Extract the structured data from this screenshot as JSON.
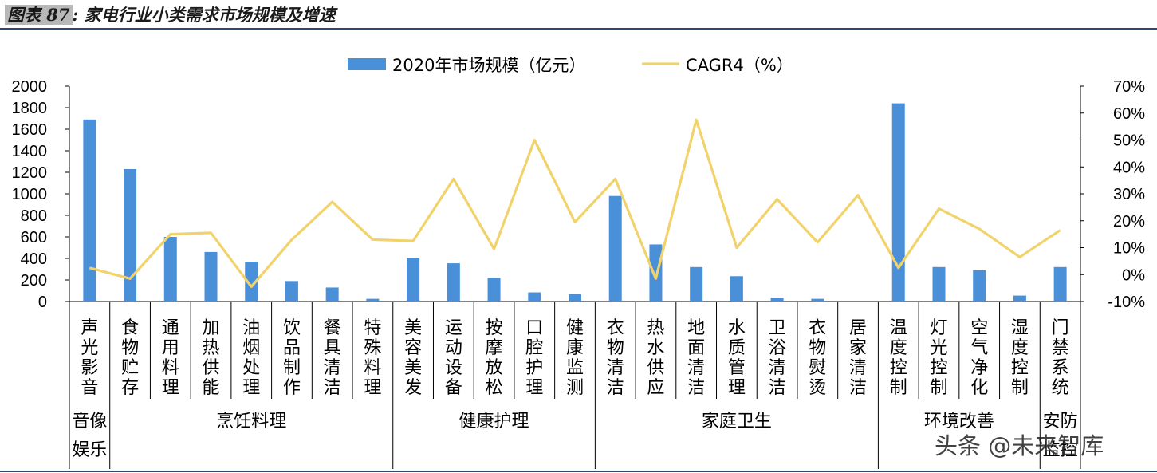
{
  "header": {
    "fig_label": "图表 87",
    "fig_sep": ":",
    "title": "家电行业小类需求市场规模及增速"
  },
  "watermark": "头条 @未来智库",
  "colors": {
    "bar": "#4a90d9",
    "line": "#f2d36b",
    "rule": "#2b4a6f"
  },
  "chart_data": {
    "type": "bar",
    "legend": [
      "2020年市场规模（亿元）",
      "CAGR4（%）"
    ],
    "legend_position": "top-center",
    "categories": [
      "声光影音",
      "食物贮存",
      "通用料理",
      "加热供能",
      "油烟处理",
      "饮品制作",
      "餐具清洁",
      "特殊料理",
      "美容美发",
      "运动设备",
      "按摩放松",
      "口腔护理",
      "健康监测",
      "衣物清洁",
      "热水供应",
      "地面清洁",
      "水质管理",
      "卫浴清洁",
      "衣物熨烫",
      "居家清洁",
      "温度控制",
      "灯光控制",
      "空气净化",
      "湿度控制",
      "门禁系统"
    ],
    "groups": [
      {
        "name": "音像娱乐",
        "start": 0,
        "end": 0
      },
      {
        "name": "烹饪料理",
        "start": 1,
        "end": 7
      },
      {
        "name": "健康护理",
        "start": 8,
        "end": 12
      },
      {
        "name": "家庭卫生",
        "start": 13,
        "end": 19
      },
      {
        "name": "环境改善",
        "start": 20,
        "end": 23
      },
      {
        "name": "安防监控",
        "start": 24,
        "end": 24
      }
    ],
    "series": [
      {
        "name": "2020年市场规模（亿元）",
        "type": "bar",
        "axis": "left",
        "values": [
          1690,
          1230,
          600,
          460,
          370,
          190,
          130,
          25,
          400,
          355,
          220,
          85,
          70,
          980,
          530,
          320,
          235,
          35,
          25,
          0,
          1840,
          320,
          290,
          55,
          320
        ]
      },
      {
        "name": "CAGR4（%）",
        "type": "line",
        "axis": "right",
        "values": [
          2.5,
          -1.5,
          15,
          15.5,
          -4.5,
          13,
          27,
          13,
          12.5,
          35.5,
          9.5,
          50,
          19.5,
          35.5,
          -1.5,
          57.5,
          10,
          28,
          12,
          29.5,
          2.5,
          24.5,
          17,
          6.5,
          16.5
        ]
      }
    ],
    "y_left": {
      "min": 0,
      "max": 2000,
      "ticks": [
        "0",
        "200",
        "400",
        "600",
        "800",
        "1000",
        "1200",
        "1400",
        "1600",
        "1800",
        "2000"
      ]
    },
    "y_right": {
      "min": -10,
      "max": 70,
      "ticks": [
        "-10%",
        "0%",
        "10%",
        "20%",
        "30%",
        "40%",
        "50%",
        "60%",
        "70%"
      ]
    },
    "grid": false
  }
}
